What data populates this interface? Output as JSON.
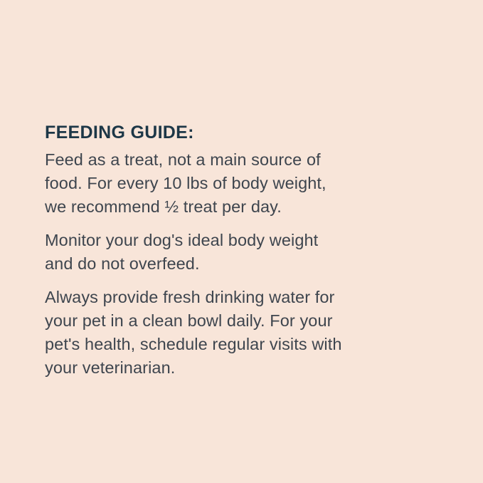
{
  "page": {
    "background_color": "#f8e5d9",
    "heading_color": "#1d3747",
    "body_color": "#3e454e"
  },
  "feeding_guide": {
    "title": "FEEDING GUIDE:",
    "paragraphs": [
      "Feed as a treat, not a main source of\nfood. For every 10 lbs of body weight,\nwe recommend ½ treat per day.",
      "Monitor your dog's ideal body weight\nand do not overfeed.",
      "Always provide fresh drinking water for\nyour pet in a clean bowl daily. For your\npet's health, schedule regular visits with\nyour veterinarian."
    ]
  }
}
